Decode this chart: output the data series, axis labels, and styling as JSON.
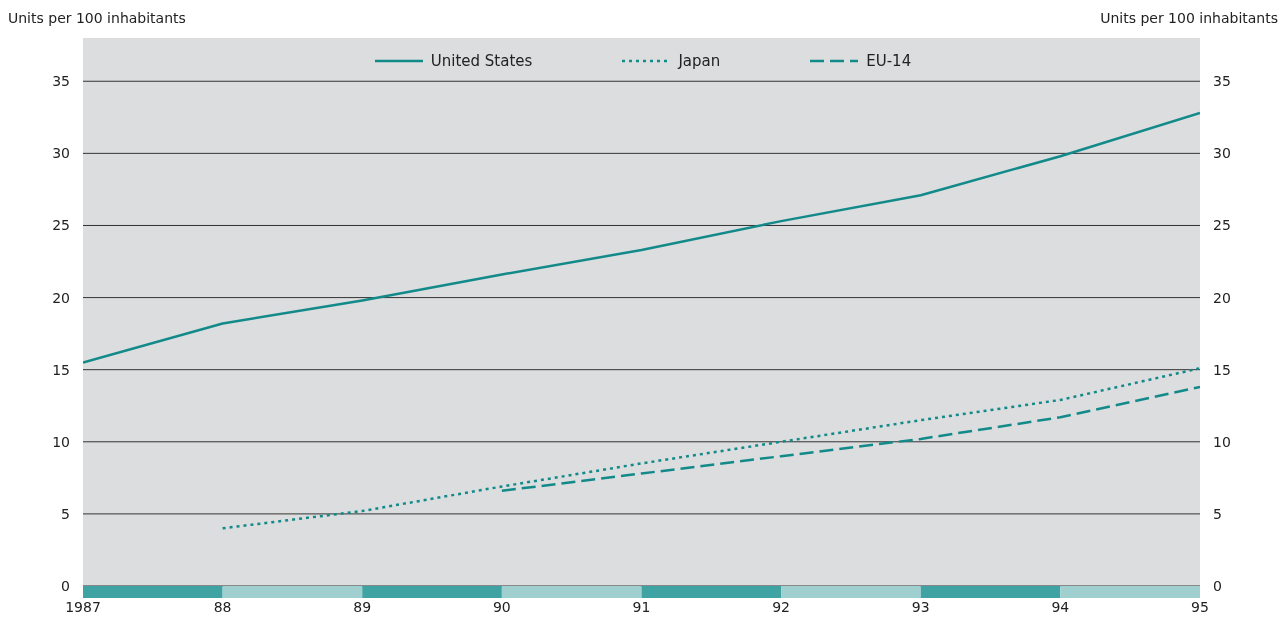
{
  "chart_data": {
    "type": "line",
    "ylabel": "Units per 100 inhabitants",
    "y2label": "Units per 100 inhabitants",
    "x": [
      1987,
      1988,
      1989,
      1990,
      1991,
      1992,
      1993,
      1994,
      1995
    ],
    "xlim": [
      1987,
      1995
    ],
    "xticks": [
      {
        "value": 1987,
        "label": "1987"
      },
      {
        "value": 1988,
        "label": "88"
      },
      {
        "value": 1989,
        "label": "89"
      },
      {
        "value": 1990,
        "label": "90"
      },
      {
        "value": 1991,
        "label": "91"
      },
      {
        "value": 1992,
        "label": "92"
      },
      {
        "value": 1993,
        "label": "93"
      },
      {
        "value": 1994,
        "label": "94"
      },
      {
        "value": 1995,
        "label": "95"
      }
    ],
    "ylim": [
      0,
      38
    ],
    "yticks": [
      0,
      5,
      10,
      15,
      20,
      25,
      30,
      35
    ],
    "y2lim": [
      0,
      38
    ],
    "y2ticks": [
      0,
      5,
      10,
      15,
      20,
      25,
      30,
      35
    ],
    "series": [
      {
        "name": "United States",
        "color": "#138a8a",
        "line_style": "solid",
        "values": [
          15.5,
          18.2,
          19.8,
          21.6,
          23.3,
          25.3,
          27.1,
          29.8,
          32.8
        ]
      },
      {
        "name": "Japan",
        "color": "#138a8a",
        "line_style": "dotted",
        "values": [
          null,
          4.0,
          5.2,
          6.9,
          8.5,
          10.0,
          11.5,
          12.9,
          15.1
        ]
      },
      {
        "name": "EU-14",
        "color": "#138a8a",
        "line_style": "dashed",
        "values": [
          null,
          null,
          null,
          6.6,
          7.8,
          9.0,
          10.2,
          11.7,
          13.8
        ]
      }
    ],
    "grid": "y",
    "legend": "top",
    "marker": "none"
  }
}
